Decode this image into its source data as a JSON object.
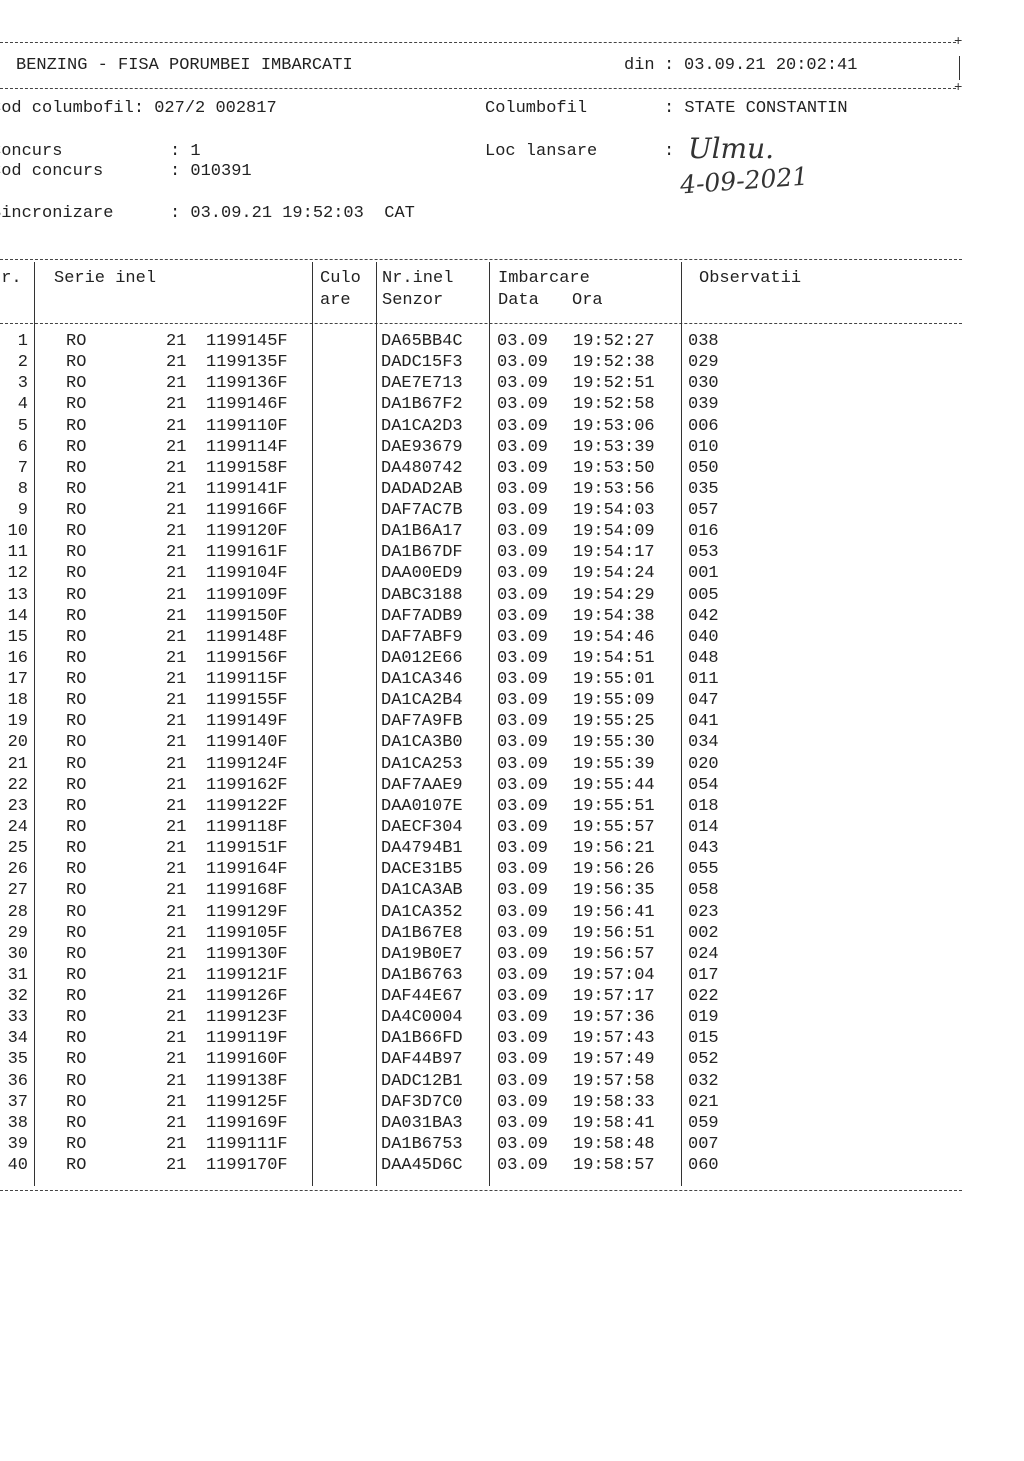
{
  "header": {
    "title": "BENZING - FISA PORUMBEI IMBARCATI",
    "din_label": "din",
    "din_value": "03.09.21 20:02:41"
  },
  "info": {
    "cod_columbofil_label": "Cod columbofil",
    "cod_columbofil_value": "027/2 002817",
    "columbofil_label": "Columbofil",
    "columbofil_value": "STATE CONSTANTIN",
    "concurs_label": "Concurs",
    "concurs_value": "1",
    "cod_concurs_label": "Cod concurs",
    "cod_concurs_value": "010391",
    "loc_lansare_label": "Loc lansare",
    "loc_lansare_handwritten": "Ulmu.",
    "handwritten_date": "4-09-2021",
    "sincronizare_label": "Sincronizare",
    "sincronizare_value": "03.09.21 19:52:03",
    "sincronizare_zone": "CAT"
  },
  "table": {
    "headers": {
      "nr": "Nr.",
      "serie_inel": "Serie inel",
      "culoare_1": "Culo",
      "culoare_2": "are",
      "nr_inel_1": "Nr.inel",
      "nr_inel_2": "Senzor",
      "imbarcare_1": "Imbarcare",
      "imbarcare_data": "Data",
      "imbarcare_ora": "Ora",
      "observatii": "Observatii"
    },
    "rows": [
      [
        "1",
        "RO",
        "21",
        "1199145F",
        "",
        "DA65BB4C",
        "03.09",
        "19:52:27",
        "038"
      ],
      [
        "2",
        "RO",
        "21",
        "1199135F",
        "",
        "DADC15F3",
        "03.09",
        "19:52:38",
        "029"
      ],
      [
        "3",
        "RO",
        "21",
        "1199136F",
        "",
        "DAE7E713",
        "03.09",
        "19:52:51",
        "030"
      ],
      [
        "4",
        "RO",
        "21",
        "1199146F",
        "",
        "DA1B67F2",
        "03.09",
        "19:52:58",
        "039"
      ],
      [
        "5",
        "RO",
        "21",
        "1199110F",
        "",
        "DA1CA2D3",
        "03.09",
        "19:53:06",
        "006"
      ],
      [
        "6",
        "RO",
        "21",
        "1199114F",
        "",
        "DAE93679",
        "03.09",
        "19:53:39",
        "010"
      ],
      [
        "7",
        "RO",
        "21",
        "1199158F",
        "",
        "DA480742",
        "03.09",
        "19:53:50",
        "050"
      ],
      [
        "8",
        "RO",
        "21",
        "1199141F",
        "",
        "DADAD2AB",
        "03.09",
        "19:53:56",
        "035"
      ],
      [
        "9",
        "RO",
        "21",
        "1199166F",
        "",
        "DAF7AC7B",
        "03.09",
        "19:54:03",
        "057"
      ],
      [
        "10",
        "RO",
        "21",
        "1199120F",
        "",
        "DA1B6A17",
        "03.09",
        "19:54:09",
        "016"
      ],
      [
        "11",
        "RO",
        "21",
        "1199161F",
        "",
        "DA1B67DF",
        "03.09",
        "19:54:17",
        "053"
      ],
      [
        "12",
        "RO",
        "21",
        "1199104F",
        "",
        "DAA00ED9",
        "03.09",
        "19:54:24",
        "001"
      ],
      [
        "13",
        "RO",
        "21",
        "1199109F",
        "",
        "DABC3188",
        "03.09",
        "19:54:29",
        "005"
      ],
      [
        "14",
        "RO",
        "21",
        "1199150F",
        "",
        "DAF7ADB9",
        "03.09",
        "19:54:38",
        "042"
      ],
      [
        "15",
        "RO",
        "21",
        "1199148F",
        "",
        "DAF7ABF9",
        "03.09",
        "19:54:46",
        "040"
      ],
      [
        "16",
        "RO",
        "21",
        "1199156F",
        "",
        "DA012E66",
        "03.09",
        "19:54:51",
        "048"
      ],
      [
        "17",
        "RO",
        "21",
        "1199115F",
        "",
        "DA1CA346",
        "03.09",
        "19:55:01",
        "011"
      ],
      [
        "18",
        "RO",
        "21",
        "1199155F",
        "",
        "DA1CA2B4",
        "03.09",
        "19:55:09",
        "047"
      ],
      [
        "19",
        "RO",
        "21",
        "1199149F",
        "",
        "DAF7A9FB",
        "03.09",
        "19:55:25",
        "041"
      ],
      [
        "20",
        "RO",
        "21",
        "1199140F",
        "",
        "DA1CA3B0",
        "03.09",
        "19:55:30",
        "034"
      ],
      [
        "21",
        "RO",
        "21",
        "1199124F",
        "",
        "DA1CA253",
        "03.09",
        "19:55:39",
        "020"
      ],
      [
        "22",
        "RO",
        "21",
        "1199162F",
        "",
        "DAF7AAE9",
        "03.09",
        "19:55:44",
        "054"
      ],
      [
        "23",
        "RO",
        "21",
        "1199122F",
        "",
        "DAA0107E",
        "03.09",
        "19:55:51",
        "018"
      ],
      [
        "24",
        "RO",
        "21",
        "1199118F",
        "",
        "DAECF304",
        "03.09",
        "19:55:57",
        "014"
      ],
      [
        "25",
        "RO",
        "21",
        "1199151F",
        "",
        "DA4794B1",
        "03.09",
        "19:56:21",
        "043"
      ],
      [
        "26",
        "RO",
        "21",
        "1199164F",
        "",
        "DACE31B5",
        "03.09",
        "19:56:26",
        "055"
      ],
      [
        "27",
        "RO",
        "21",
        "1199168F",
        "",
        "DA1CA3AB",
        "03.09",
        "19:56:35",
        "058"
      ],
      [
        "28",
        "RO",
        "21",
        "1199129F",
        "",
        "DA1CA352",
        "03.09",
        "19:56:41",
        "023"
      ],
      [
        "29",
        "RO",
        "21",
        "1199105F",
        "",
        "DA1B67E8",
        "03.09",
        "19:56:51",
        "002"
      ],
      [
        "30",
        "RO",
        "21",
        "1199130F",
        "",
        "DA19B0E7",
        "03.09",
        "19:56:57",
        "024"
      ],
      [
        "31",
        "RO",
        "21",
        "1199121F",
        "",
        "DA1B6763",
        "03.09",
        "19:57:04",
        "017"
      ],
      [
        "32",
        "RO",
        "21",
        "1199126F",
        "",
        "DAF44E67",
        "03.09",
        "19:57:17",
        "022"
      ],
      [
        "33",
        "RO",
        "21",
        "1199123F",
        "",
        "DA4C0004",
        "03.09",
        "19:57:36",
        "019"
      ],
      [
        "34",
        "RO",
        "21",
        "1199119F",
        "",
        "DA1B66FD",
        "03.09",
        "19:57:43",
        "015"
      ],
      [
        "35",
        "RO",
        "21",
        "1199160F",
        "",
        "DAF44B97",
        "03.09",
        "19:57:49",
        "052"
      ],
      [
        "36",
        "RO",
        "21",
        "1199138F",
        "",
        "DADC12B1",
        "03.09",
        "19:57:58",
        "032"
      ],
      [
        "37",
        "RO",
        "21",
        "1199125F",
        "",
        "DAF3D7C0",
        "03.09",
        "19:58:33",
        "021"
      ],
      [
        "38",
        "RO",
        "21",
        "1199169F",
        "",
        "DA031BA3",
        "03.09",
        "19:58:41",
        "059"
      ],
      [
        "39",
        "RO",
        "21",
        "1199111F",
        "",
        "DA1B6753",
        "03.09",
        "19:58:48",
        "007"
      ],
      [
        "40",
        "RO",
        "21",
        "1199170F",
        "",
        "DAA45D6C",
        "03.09",
        "19:58:57",
        "060"
      ]
    ]
  }
}
